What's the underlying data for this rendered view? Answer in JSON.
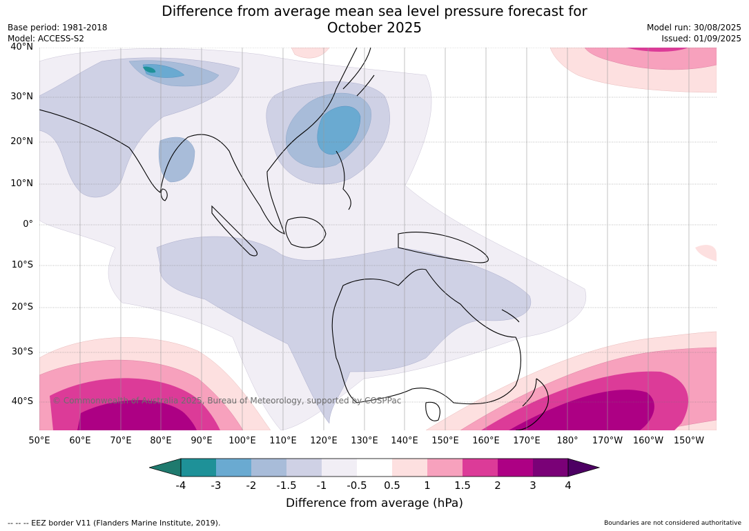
{
  "title_line1": "Difference from average mean sea level pressure forecast for",
  "title_line2": "October 2025",
  "meta_left": {
    "base_period": "Base period: 1981-2018",
    "model": "Model: ACCESS-S2"
  },
  "meta_right": {
    "model_run": "Model run: 30/08/2025",
    "issued": "Issued: 01/09/2025"
  },
  "lat_labels": [
    "40°N",
    "30°N",
    "20°N",
    "10°N",
    "0°",
    "10°S",
    "20°S",
    "30°S",
    "40°S"
  ],
  "lon_labels": [
    "50°E",
    "60°E",
    "70°E",
    "80°E",
    "90°E",
    "100°E",
    "110°E",
    "120°E",
    "130°E",
    "140°E",
    "150°E",
    "160°E",
    "170°E",
    "180°",
    "170°W",
    "160°W",
    "150°W"
  ],
  "copyright": "© Commonwealth of Australia 2025, Bureau of Meteorology, supported by COSPPac",
  "colorbar": {
    "title": "Difference from average (hPa)",
    "tick_labels": [
      "-4",
      "-3",
      "-2",
      "-1.5",
      "-1",
      "-0.5",
      "0.5",
      "1",
      "1.5",
      "2",
      "3",
      "4"
    ],
    "colors": [
      "#1f7a6e",
      "#1e9198",
      "#6aaad1",
      "#a8bcd9",
      "#cfd1e5",
      "#f1eef5",
      "#ffffff",
      "#fde0e0",
      "#f7a1bd",
      "#dc3b98",
      "#ad0084",
      "#7a0177",
      "#4d0063"
    ]
  },
  "footer_left": "--  --  -- EEZ border V11 (Flanders Marine Institute, 2019).",
  "footer_right": "Boundaries are not considered authoritative"
}
